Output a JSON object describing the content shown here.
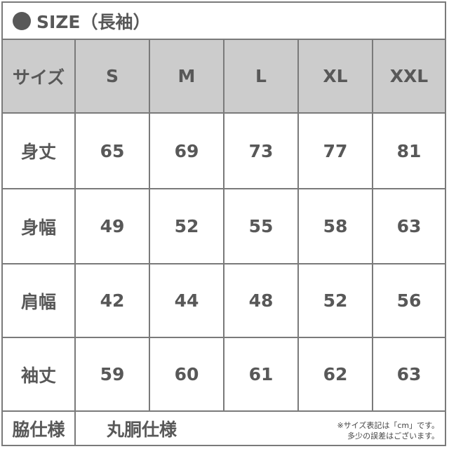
{
  "title": "SIZE（長袖）",
  "title_icon": "bullet-circle",
  "colors": {
    "text": "#585858",
    "header_bg": "#cccccc",
    "border": "#7a7a7a"
  },
  "header": {
    "label": "サイズ",
    "sizes": [
      "S",
      "M",
      "L",
      "XL",
      "XXL"
    ]
  },
  "rows": [
    {
      "label": "身丈",
      "values": [
        "65",
        "69",
        "73",
        "77",
        "81"
      ]
    },
    {
      "label": "身幅",
      "values": [
        "49",
        "52",
        "55",
        "58",
        "63"
      ]
    },
    {
      "label": "肩幅",
      "values": [
        "42",
        "44",
        "48",
        "52",
        "56"
      ]
    },
    {
      "label": "袖丈",
      "values": [
        "59",
        "60",
        "61",
        "62",
        "63"
      ]
    }
  ],
  "footer": {
    "label": "脇仕様",
    "value": "丸胴仕様",
    "note_line1": "※サイズ表記は「cm」です。",
    "note_line2": "多少の誤差はございます。"
  }
}
